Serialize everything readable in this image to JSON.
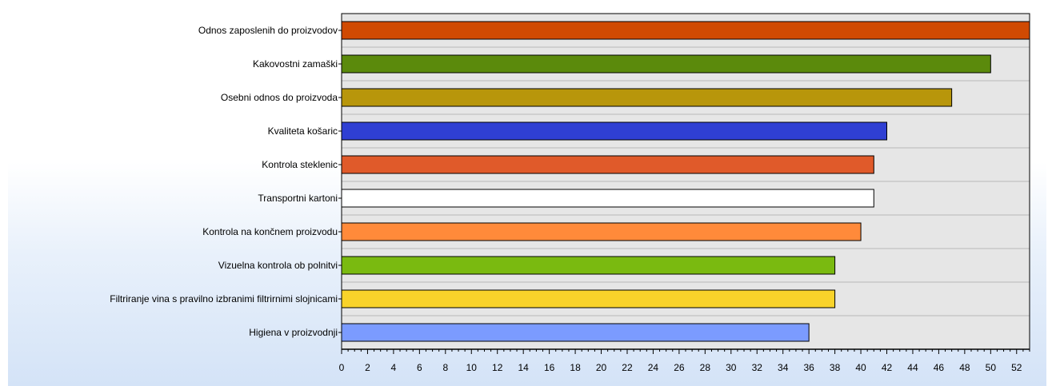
{
  "chart_data": {
    "type": "bar",
    "orientation": "horizontal",
    "title": "",
    "xlabel": "",
    "ylabel": "",
    "xlim": [
      0,
      53
    ],
    "grid": true,
    "legend": "none",
    "categories": [
      "Odnos zaposlenih do proizvodov",
      "Kakovostni zamaški",
      "Osebni odnos do proizvoda",
      "Kvaliteta košaric",
      "Kontrola steklenic",
      "Transportni kartoni",
      "Kontrola na končnem proizvodu",
      "Vizuelna kontrola ob polnitvi",
      "Filtriranje vina s pravilno izbranimi filtrirnimi slojnicami",
      "Higiena v proizvodnji"
    ],
    "values": [
      53,
      50,
      47,
      42,
      41,
      41,
      40,
      38,
      38,
      36
    ],
    "colors": [
      "#d04a02",
      "#5b8a0c",
      "#b8960b",
      "#2f3fd3",
      "#e05a2a",
      "#ffffff",
      "#ff8a3a",
      "#7aba10",
      "#f9d32a",
      "#7b9bff"
    ],
    "x_ticks": [
      "0",
      "2",
      "4",
      "6",
      "8",
      "10",
      "12",
      "14",
      "16",
      "18",
      "20",
      "22",
      "24",
      "26",
      "28",
      "30",
      "32",
      "34",
      "36",
      "38",
      "40",
      "42",
      "44",
      "46",
      "48",
      "50",
      "52"
    ],
    "plot_background": "#e6e6e6",
    "grid_color": "#b8b8b8"
  }
}
